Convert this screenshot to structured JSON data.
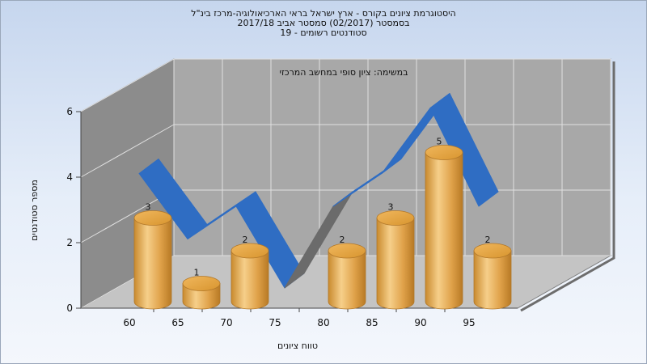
{
  "titles": [
    "היסטוגרמת ציונים בקורס - ארץ ישראל בראי הארכיאולוגיה-מרכז בינ\"ל",
    "בסמסטר  (02/2017)  סמסטר אביב 2017/18",
    "סטודנטים רשומים - 19"
  ],
  "chart_data": {
    "type": "bar",
    "inner_title": "במשימה: ציון סופי במחשב המרכזי",
    "xlabel": "טווח ציונים",
    "ylabel": "מספר סטודנטים",
    "ylim": [
      0,
      6
    ],
    "y_ticks": [
      "0",
      "2",
      "4",
      "6"
    ],
    "x_tick_labels": [
      "60",
      "65",
      "70",
      "75",
      "80",
      "85",
      "90",
      "95"
    ],
    "categories": [
      "60",
      "65",
      "70",
      "75",
      "80",
      "85",
      "90",
      "95"
    ],
    "values": [
      3,
      1,
      2,
      0,
      2,
      3,
      5,
      2
    ],
    "value_labels": [
      "3",
      "1",
      "2",
      "",
      "2",
      "3",
      "5",
      "2"
    ],
    "trend_line": {
      "color": "#2f6dc3",
      "flat_color": "#6b6b6b"
    },
    "bar_color": "#e6a94c",
    "wall_color": "#a8a8a8",
    "floor_color": "#c4c4c4",
    "grid": true
  }
}
